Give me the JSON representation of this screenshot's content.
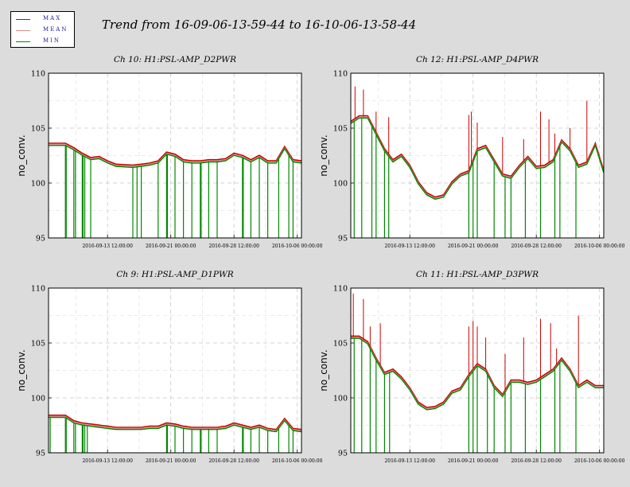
{
  "title": "Trend from 16-09-06-13-59-44 to 16-10-06-13-58-44",
  "legend": [
    {
      "label": "MAX",
      "color": "#cc0000"
    },
    {
      "label": "MEAN",
      "color": "#d98c8c"
    },
    {
      "label": "MIN",
      "color": "#008800"
    }
  ],
  "chart_data": [
    {
      "type": "line",
      "title": "Ch 10: H1:PSL-AMP_D2PWR",
      "ylabel": "no_conv.",
      "ylim": [
        95,
        110
      ],
      "yticks": [
        "95",
        "100",
        "105",
        "110"
      ],
      "xticks": [
        "2016-09-13 12:00:00",
        "2016-09-21 00:00:00",
        "2016-09-28 12:00:00",
        "2016-10-06 00:00:00"
      ],
      "xlim": [
        0,
        30
      ],
      "xtick_days": [
        7,
        14.5,
        22,
        29.5
      ],
      "curve": [
        [
          0,
          103.5
        ],
        [
          2,
          103.5
        ],
        [
          3,
          103.1
        ],
        [
          4,
          102.6
        ],
        [
          5,
          102.2
        ],
        [
          6,
          102.3
        ],
        [
          7,
          101.9
        ],
        [
          8,
          101.6
        ],
        [
          10,
          101.5
        ],
        [
          11,
          101.6
        ],
        [
          12,
          101.7
        ],
        [
          13,
          101.9
        ],
        [
          14,
          102.7
        ],
        [
          15,
          102.5
        ],
        [
          16,
          102.0
        ],
        [
          17,
          101.9
        ],
        [
          18,
          101.9
        ],
        [
          19,
          102.0
        ],
        [
          20,
          102.0
        ],
        [
          21,
          102.1
        ],
        [
          22,
          102.6
        ],
        [
          23,
          102.4
        ],
        [
          24,
          102.0
        ],
        [
          25,
          102.4
        ],
        [
          26,
          101.9
        ],
        [
          27,
          101.9
        ],
        [
          28,
          103.2
        ],
        [
          29,
          102.0
        ],
        [
          30,
          101.9
        ]
      ],
      "max_spikes": [],
      "min_drops": [
        2,
        2.1,
        3,
        3.2,
        4,
        4.1,
        4.3,
        5,
        10,
        10.5,
        11,
        13,
        14,
        14.1,
        15,
        16,
        17,
        18,
        18.1,
        19,
        20,
        23,
        23.1,
        24,
        25,
        26,
        27.3,
        28.5,
        29
      ]
    },
    {
      "type": "line",
      "title": "Ch 12: H1:PSL-AMP_D4PWR",
      "ylabel": "no_conv.",
      "ylim": [
        95,
        110
      ],
      "yticks": [
        "95",
        "100",
        "105",
        "110"
      ],
      "xticks": [
        "2016-09-13 12:00:00",
        "2016-09-21 00:00:00",
        "2016-09-28 12:00:00",
        "2016-10-06 00:00:00"
      ],
      "xlim": [
        0,
        30
      ],
      "xtick_days": [
        7,
        14.5,
        22,
        29.5
      ],
      "curve": [
        [
          0,
          105.5
        ],
        [
          1,
          106.0
        ],
        [
          2,
          106.0
        ],
        [
          3,
          104.5
        ],
        [
          4,
          103.0
        ],
        [
          5,
          102.0
        ],
        [
          6,
          102.5
        ],
        [
          7,
          101.5
        ],
        [
          8,
          100.0
        ],
        [
          9,
          99.0
        ],
        [
          10,
          98.6
        ],
        [
          11,
          98.8
        ],
        [
          12,
          100.0
        ],
        [
          13,
          100.7
        ],
        [
          14,
          101.0
        ],
        [
          15,
          103.0
        ],
        [
          16,
          103.3
        ],
        [
          17,
          102.0
        ],
        [
          18,
          100.7
        ],
        [
          19,
          100.5
        ],
        [
          20,
          101.5
        ],
        [
          21,
          102.3
        ],
        [
          22,
          101.4
        ],
        [
          23,
          101.5
        ],
        [
          24,
          102.0
        ],
        [
          25,
          103.8
        ],
        [
          26,
          103.0
        ],
        [
          27,
          101.5
        ],
        [
          28,
          101.8
        ],
        [
          29,
          103.5
        ],
        [
          30,
          101.0
        ]
      ],
      "max_spikes": [
        [
          0.5,
          108.8
        ],
        [
          1.5,
          108.5
        ],
        [
          3,
          106.5
        ],
        [
          4.5,
          106.0
        ],
        [
          14,
          106.2
        ],
        [
          14.3,
          106.5
        ],
        [
          15,
          105.5
        ],
        [
          18,
          104.2
        ],
        [
          20.5,
          104.0
        ],
        [
          22.5,
          106.5
        ],
        [
          23.5,
          105.8
        ],
        [
          24.2,
          104.5
        ],
        [
          26,
          105.0
        ],
        [
          28,
          107.5
        ]
      ],
      "min_drops": [
        0.4,
        1.3,
        2.5,
        3,
        4,
        4.5,
        14,
        14.5,
        15,
        17,
        18.3,
        19,
        20.7,
        22.5,
        24.2,
        24.8,
        26.7
      ]
    },
    {
      "type": "line",
      "title": "Ch 9: H1:PSL-AMP_D1PWR",
      "ylabel": "no_conv.",
      "ylim": [
        95,
        110
      ],
      "yticks": [
        "95",
        "100",
        "105",
        "110"
      ],
      "xticks": [
        "2016-09-13 12:00:00",
        "2016-09-21 00:00:00",
        "2016-09-28 12:00:00",
        "2016-10-06 00:00:00"
      ],
      "xlim": [
        0,
        30
      ],
      "xtick_days": [
        7,
        14.5,
        22,
        29.5
      ],
      "curve": [
        [
          0,
          98.3
        ],
        [
          2,
          98.3
        ],
        [
          3,
          97.8
        ],
        [
          4,
          97.6
        ],
        [
          5,
          97.5
        ],
        [
          6,
          97.4
        ],
        [
          7,
          97.3
        ],
        [
          8,
          97.2
        ],
        [
          10,
          97.2
        ],
        [
          11,
          97.2
        ],
        [
          12,
          97.3
        ],
        [
          13,
          97.3
        ],
        [
          14,
          97.6
        ],
        [
          15,
          97.5
        ],
        [
          16,
          97.3
        ],
        [
          17,
          97.2
        ],
        [
          18,
          97.2
        ],
        [
          19,
          97.2
        ],
        [
          20,
          97.2
        ],
        [
          21,
          97.3
        ],
        [
          22,
          97.6
        ],
        [
          23,
          97.4
        ],
        [
          24,
          97.2
        ],
        [
          25,
          97.4
        ],
        [
          26,
          97.1
        ],
        [
          27,
          97.0
        ],
        [
          28,
          98.0
        ],
        [
          29,
          97.1
        ],
        [
          30,
          97.0
        ]
      ],
      "max_spikes": [],
      "min_drops": [
        0.2,
        2,
        2.1,
        3,
        3.2,
        4,
        4.1,
        4.3,
        4.6,
        14,
        14.1,
        15,
        16,
        17,
        18,
        18.1,
        19,
        20,
        23,
        23.1,
        24,
        25,
        26,
        27.3,
        28.5,
        29
      ]
    },
    {
      "type": "line",
      "title": "Ch 11: H1:PSL-AMP_D3PWR",
      "ylabel": "no_conv.",
      "ylim": [
        95,
        110
      ],
      "yticks": [
        "95",
        "100",
        "105",
        "110"
      ],
      "xticks": [
        "2016-09-13 12:00:00",
        "2016-09-21 00:00:00",
        "2016-09-28 12:00:00",
        "2016-10-06 00:00:00"
      ],
      "xlim": [
        0,
        30
      ],
      "xtick_days": [
        7,
        14.5,
        22,
        29.5
      ],
      "curve": [
        [
          0,
          105.5
        ],
        [
          1,
          105.5
        ],
        [
          2,
          105.0
        ],
        [
          3,
          103.5
        ],
        [
          4,
          102.2
        ],
        [
          5,
          102.5
        ],
        [
          6,
          101.8
        ],
        [
          7,
          100.8
        ],
        [
          8,
          99.5
        ],
        [
          9,
          99.0
        ],
        [
          10,
          99.1
        ],
        [
          11,
          99.5
        ],
        [
          12,
          100.5
        ],
        [
          13,
          100.8
        ],
        [
          14,
          102.0
        ],
        [
          15,
          103.0
        ],
        [
          16,
          102.5
        ],
        [
          17,
          101.0
        ],
        [
          18,
          100.2
        ],
        [
          19,
          101.5
        ],
        [
          20,
          101.5
        ],
        [
          21,
          101.3
        ],
        [
          22,
          101.5
        ],
        [
          23,
          102.0
        ],
        [
          24,
          102.5
        ],
        [
          25,
          103.5
        ],
        [
          26,
          102.5
        ],
        [
          27,
          101.0
        ],
        [
          28,
          101.5
        ],
        [
          29,
          101.0
        ],
        [
          30,
          101.0
        ]
      ],
      "max_spikes": [
        [
          0.3,
          109.5
        ],
        [
          1.5,
          109.0
        ],
        [
          2.3,
          106.5
        ],
        [
          3.5,
          106.8
        ],
        [
          14,
          106.5
        ],
        [
          14.5,
          107.0
        ],
        [
          15,
          106.5
        ],
        [
          16,
          105.5
        ],
        [
          18.3,
          104.0
        ],
        [
          20.5,
          105.5
        ],
        [
          22.5,
          107.2
        ],
        [
          23.7,
          106.8
        ],
        [
          24.4,
          104.5
        ],
        [
          27,
          107.5
        ]
      ],
      "min_drops": [
        0.4,
        1.3,
        2.3,
        3,
        4,
        4.6,
        14,
        14.5,
        15,
        16.2,
        17,
        18.3,
        19,
        20.7,
        22.5,
        24.2,
        24.8,
        26.7
      ]
    }
  ]
}
